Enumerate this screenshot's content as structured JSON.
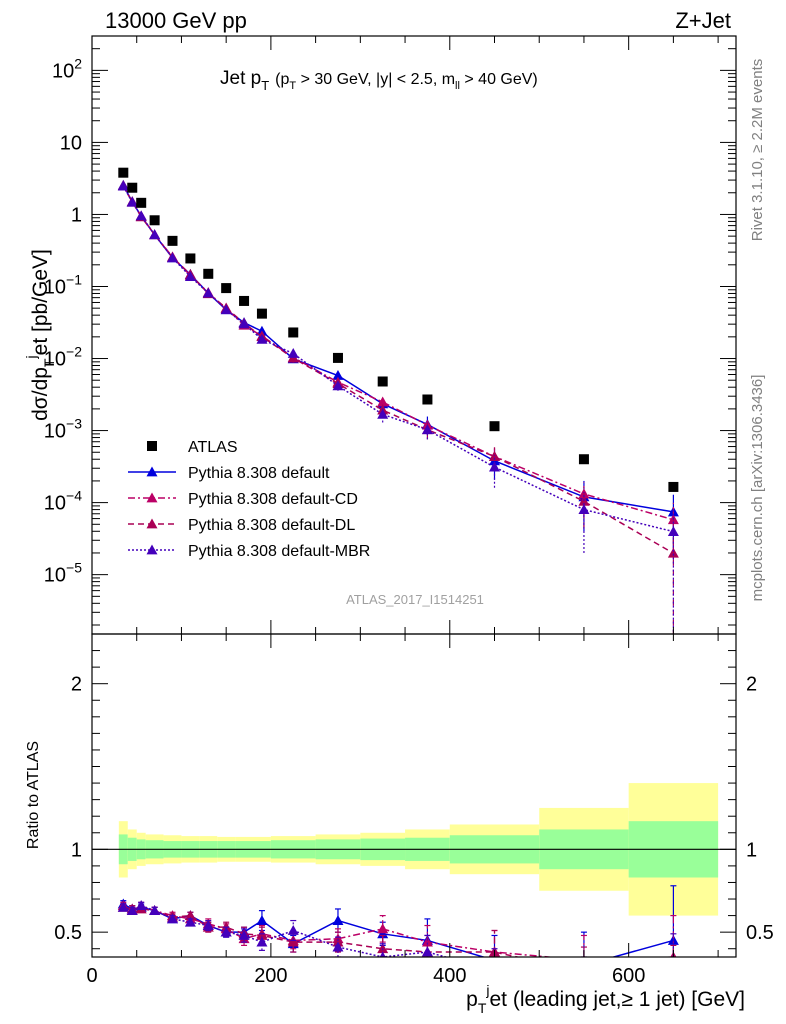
{
  "header": {
    "left": "13000 GeV pp",
    "right": "Z+Jet"
  },
  "side_labels": {
    "rivet": "Rivet 3.1.10, ≥ 2.2M events",
    "mcplots": "mcplots.cern.ch [arXiv:1306.3436]"
  },
  "analysis_id": "ATLAS_2017_I1514251",
  "chart_data": {
    "type": "scatter",
    "title": "Jet pT (pT > 30 GeV, |y| < 2.5, mll > 40 GeV)",
    "title_parts": {
      "main": "Jet p",
      "main_sub": "T",
      "cond_open": "(p",
      "cond_sub": "T",
      "cond_mid": " > 30 GeV, |y| < 2.5, m",
      "cond_sub2": "ll",
      "cond_close": " > 40 GeV)"
    },
    "ylabel_parts": {
      "a": "dσ/dp",
      "sub": "T",
      "sup": "j",
      "b": "et [pb/GeV]"
    },
    "xlabel_parts": {
      "a": "p",
      "sub": "T",
      "sup": "j",
      "b": "et (leading jet,≥ 1 jet) [GeV]"
    },
    "ratio_ylabel": "Ratio to ATLAS",
    "xlim": [
      0,
      720
    ],
    "ylim": [
      1.5e-06,
      300
    ],
    "ratio_ylim": [
      0.35,
      2.3
    ],
    "yscale": "log",
    "xticks": [
      0,
      200,
      400,
      600
    ],
    "xtick_labels": [
      "0",
      "200",
      "400",
      "600"
    ],
    "yticks": [
      1e-05,
      0.0001,
      0.001,
      0.01,
      0.1,
      1,
      10,
      100
    ],
    "ytick_labels": [
      {
        "base": "10",
        "exp": "−5"
      },
      {
        "base": "10",
        "exp": "−4"
      },
      {
        "base": "10",
        "exp": "−3"
      },
      {
        "base": "10",
        "exp": "−2"
      },
      {
        "base": "10",
        "exp": "−1"
      },
      {
        "base": "1",
        "exp": ""
      },
      {
        "base": "10",
        "exp": ""
      },
      {
        "base": "10",
        "exp": "2"
      }
    ],
    "ratio_yticks": [
      0.5,
      1,
      2
    ],
    "ratio_ytick_labels": [
      "0.5",
      "1",
      "2"
    ],
    "legend_position": "bottom-left",
    "bins": [
      [
        30,
        40
      ],
      [
        40,
        50
      ],
      [
        50,
        60
      ],
      [
        60,
        80
      ],
      [
        80,
        100
      ],
      [
        100,
        120
      ],
      [
        120,
        140
      ],
      [
        140,
        160
      ],
      [
        160,
        180
      ],
      [
        180,
        200
      ],
      [
        200,
        250
      ],
      [
        250,
        300
      ],
      [
        300,
        350
      ],
      [
        350,
        400
      ],
      [
        400,
        500
      ],
      [
        500,
        600
      ],
      [
        600,
        700
      ]
    ],
    "x": [
      35,
      45,
      55,
      70,
      90,
      110,
      130,
      150,
      170,
      190,
      225,
      275,
      325,
      375,
      450,
      550,
      650
    ],
    "series": [
      {
        "name": "ATLAS",
        "color": "#000000",
        "marker": "square",
        "values": [
          3.8,
          2.35,
          1.45,
          0.83,
          0.43,
          0.245,
          0.15,
          0.095,
          0.063,
          0.042,
          0.023,
          0.0102,
          0.0048,
          0.0027,
          0.00115,
          0.0004,
          0.000165
        ],
        "band_yellow": [
          0.17,
          0.12,
          0.1,
          0.09,
          0.085,
          0.08,
          0.08,
          0.075,
          0.075,
          0.075,
          0.08,
          0.09,
          0.1,
          0.12,
          0.15,
          0.25,
          0.4
        ],
        "band_green": [
          0.09,
          0.07,
          0.06,
          0.055,
          0.05,
          0.05,
          0.05,
          0.05,
          0.05,
          0.05,
          0.055,
          0.06,
          0.065,
          0.07,
          0.085,
          0.12,
          0.17
        ]
      },
      {
        "name": "Pythia 8.308 default",
        "color": "#0000dd",
        "line_style": "solid",
        "ratio": [
          0.67,
          0.64,
          0.65,
          0.63,
          0.58,
          0.6,
          0.54,
          0.5,
          0.5,
          0.57,
          0.43,
          0.57,
          0.49,
          0.45,
          0.33,
          0.3,
          0.45
        ],
        "ratio_err": [
          0.02,
          0.02,
          0.02,
          0.02,
          0.02,
          0.02,
          0.02,
          0.03,
          0.03,
          0.06,
          0.05,
          0.07,
          0.07,
          0.13,
          0.15,
          0.2,
          0.33
        ]
      },
      {
        "name": "Pythia 8.308 default-CD",
        "color": "#bb0066",
        "line_style": "dashdot",
        "ratio": [
          0.66,
          0.63,
          0.66,
          0.63,
          0.6,
          0.58,
          0.55,
          0.52,
          0.46,
          0.49,
          0.45,
          0.46,
          0.52,
          0.44,
          0.38,
          0.33,
          0.35
        ],
        "ratio_err": [
          0.02,
          0.02,
          0.02,
          0.02,
          0.02,
          0.02,
          0.03,
          0.03,
          0.04,
          0.05,
          0.05,
          0.06,
          0.08,
          0.1,
          0.13,
          0.15,
          0.25
        ]
      },
      {
        "name": "Pythia 8.308 default-DL",
        "color": "#aa0055",
        "line_style": "dashed",
        "ratio": [
          0.65,
          0.64,
          0.64,
          0.63,
          0.59,
          0.6,
          0.53,
          0.53,
          0.49,
          0.48,
          0.44,
          0.44,
          0.4,
          0.38,
          0.38,
          0.26,
          0.12
        ],
        "ratio_err": [
          0.02,
          0.02,
          0.02,
          0.02,
          0.02,
          0.02,
          0.03,
          0.03,
          0.04,
          0.05,
          0.06,
          0.06,
          0.08,
          0.1,
          0.13,
          0.15,
          0.3
        ]
      },
      {
        "name": "Pythia 8.308 default-MBR",
        "color": "#4400bb",
        "line_style": "dotted",
        "ratio": [
          0.65,
          0.63,
          0.66,
          0.63,
          0.58,
          0.56,
          0.54,
          0.5,
          0.48,
          0.44,
          0.51,
          0.41,
          0.35,
          0.38,
          0.27,
          0.2,
          0.24
        ],
        "ratio_err": [
          0.02,
          0.02,
          0.02,
          0.02,
          0.02,
          0.02,
          0.03,
          0.03,
          0.04,
          0.05,
          0.06,
          0.06,
          0.08,
          0.1,
          0.13,
          0.15,
          0.25
        ]
      }
    ]
  }
}
